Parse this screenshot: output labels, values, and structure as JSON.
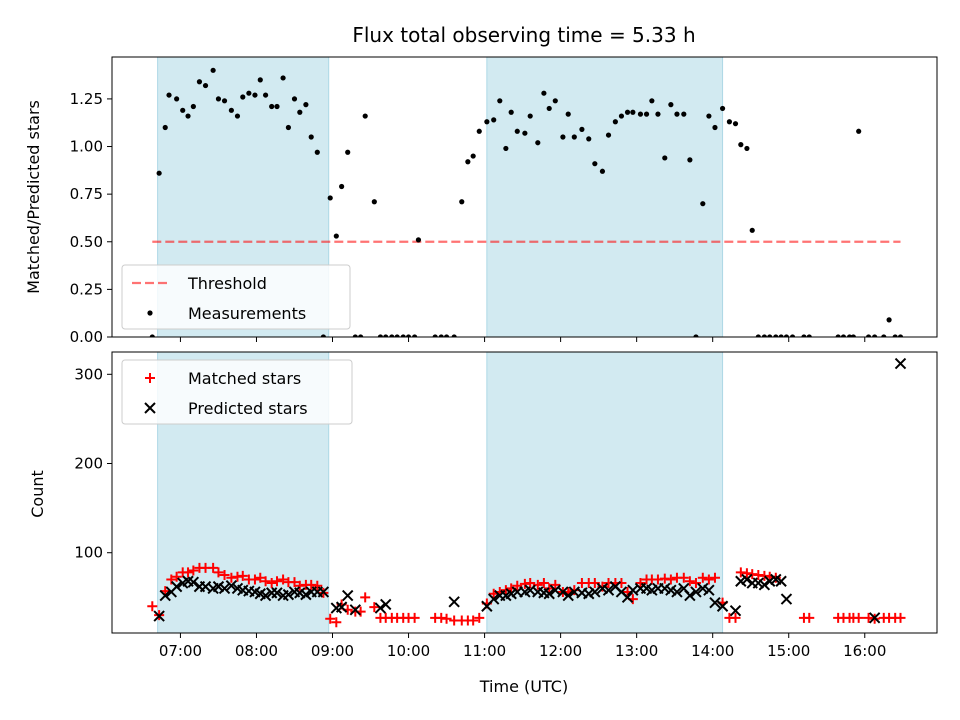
{
  "chart_data": {
    "type": "scatter",
    "title": "Flux total observing time = 5.33 h",
    "xlabel": "Time (UTC)",
    "x_ticks": [
      "07:00",
      "08:00",
      "09:00",
      "10:00",
      "11:00",
      "12:00",
      "13:00",
      "14:00",
      "15:00",
      "16:00"
    ],
    "x_tick_hours": [
      7,
      8,
      9,
      10,
      11,
      12,
      13,
      14,
      15,
      16
    ],
    "xlim": [
      6.1,
      16.95
    ],
    "highlight_spans": [
      [
        6.7,
        8.95
      ],
      [
        11.03,
        14.13
      ]
    ],
    "colors": {
      "span": "#add8e6",
      "threshold": "#ff0000",
      "matched": "#ff0000",
      "predicted": "#000000",
      "measurement": "#000000"
    },
    "panels": [
      {
        "ylabel": "Matched/Predicted stars",
        "ylim": [
          0,
          1.47
        ],
        "y_ticks": [
          "0.00",
          "0.25",
          "0.50",
          "0.75",
          "1.00",
          "1.25"
        ],
        "y_tick_values": [
          0,
          0.25,
          0.5,
          0.75,
          1.0,
          1.25
        ],
        "legend": {
          "location": "lower-left",
          "entries": [
            "Threshold",
            "Measurements"
          ]
        },
        "series": [
          {
            "name": "Threshold",
            "kind": "dashed-line",
            "x": [
              6.63,
              16.47
            ],
            "y": [
              0.5,
              0.5
            ]
          },
          {
            "name": "Measurements",
            "kind": "dots",
            "x": [
              6.63,
              6.72,
              6.8,
              6.85,
              6.95,
              7.03,
              7.1,
              7.17,
              7.25,
              7.33,
              7.43,
              7.5,
              7.58,
              7.67,
              7.75,
              7.82,
              7.9,
              7.98,
              8.05,
              8.12,
              8.2,
              8.27,
              8.35,
              8.42,
              8.5,
              8.57,
              8.65,
              8.72,
              8.8,
              8.88,
              8.97,
              9.05,
              9.12,
              9.2,
              9.3,
              9.37,
              9.43,
              9.55,
              9.63,
              9.7,
              9.78,
              9.85,
              9.93,
              10.0,
              10.08,
              10.13,
              10.35,
              10.43,
              10.5,
              10.6,
              10.7,
              10.78,
              10.85,
              10.93,
              11.03,
              11.12,
              11.2,
              11.28,
              11.35,
              11.43,
              11.53,
              11.6,
              11.7,
              11.78,
              11.85,
              11.93,
              12.03,
              12.1,
              12.18,
              12.28,
              12.37,
              12.45,
              12.55,
              12.63,
              12.72,
              12.8,
              12.88,
              12.95,
              13.05,
              13.13,
              13.2,
              13.28,
              13.37,
              13.45,
              13.53,
              13.62,
              13.7,
              13.78,
              13.87,
              13.95,
              14.03,
              14.13,
              14.22,
              14.3,
              14.37,
              14.45,
              14.52,
              14.6,
              14.68,
              14.75,
              14.83,
              14.9,
              14.97,
              15.05,
              15.2,
              15.27,
              15.65,
              15.72,
              15.8,
              15.85,
              15.92,
              16.05,
              16.13,
              16.25,
              16.32,
              16.4,
              16.47
            ],
            "y": [
              0.0,
              0.86,
              1.1,
              1.27,
              1.25,
              1.19,
              1.16,
              1.21,
              1.34,
              1.32,
              1.4,
              1.25,
              1.24,
              1.19,
              1.16,
              1.26,
              1.28,
              1.27,
              1.35,
              1.27,
              1.21,
              1.21,
              1.36,
              1.1,
              1.25,
              1.18,
              1.22,
              1.05,
              0.97,
              0.0,
              0.73,
              0.53,
              0.79,
              0.97,
              0.0,
              0.0,
              1.16,
              0.71,
              0.0,
              0.0,
              0.0,
              0.0,
              0.0,
              0.0,
              0.0,
              0.51,
              0.0,
              0.0,
              0.0,
              0.0,
              0.71,
              0.92,
              0.95,
              1.08,
              1.13,
              1.14,
              1.24,
              0.99,
              1.18,
              1.08,
              1.07,
              1.16,
              1.02,
              1.28,
              1.2,
              1.24,
              1.05,
              1.17,
              1.05,
              1.09,
              1.04,
              0.91,
              0.87,
              1.06,
              1.13,
              1.16,
              1.18,
              1.18,
              1.17,
              1.17,
              1.24,
              1.17,
              0.94,
              1.22,
              1.17,
              1.17,
              0.93,
              0.0,
              0.7,
              1.16,
              1.1,
              1.2,
              1.13,
              1.12,
              1.01,
              0.99,
              0.56,
              0.0,
              0.0,
              0.0,
              0.0,
              0.0,
              0.0,
              0.0,
              0.0,
              0.0,
              0.0,
              0.0,
              0.0,
              0.0,
              1.08,
              0.0,
              0.0,
              0.0,
              0.09,
              0.0,
              0.0
            ]
          }
        ]
      },
      {
        "ylabel": "Count",
        "ylim": [
          10,
          325
        ],
        "y_ticks": [
          "100",
          "200",
          "300"
        ],
        "y_tick_values": [
          100,
          200,
          300
        ],
        "legend": {
          "location": "upper-left",
          "entries": [
            "Matched stars",
            "Predicted stars"
          ]
        },
        "series": [
          {
            "name": "Matched stars",
            "kind": "plus",
            "x": [
              6.63,
              6.72,
              6.8,
              6.88,
              6.95,
              7.03,
              7.1,
              7.17,
              7.25,
              7.33,
              7.43,
              7.5,
              7.58,
              7.67,
              7.75,
              7.82,
              7.9,
              7.98,
              8.05,
              8.12,
              8.2,
              8.27,
              8.35,
              8.42,
              8.5,
              8.57,
              8.65,
              8.72,
              8.8,
              8.88,
              8.97,
              9.05,
              9.12,
              9.2,
              9.3,
              9.37,
              9.43,
              9.55,
              9.63,
              9.7,
              9.78,
              9.85,
              9.93,
              10.0,
              10.08,
              10.35,
              10.43,
              10.5,
              10.6,
              10.7,
              10.78,
              10.85,
              10.93,
              11.03,
              11.12,
              11.2,
              11.28,
              11.35,
              11.43,
              11.53,
              11.6,
              11.7,
              11.78,
              11.85,
              11.93,
              12.03,
              12.1,
              12.18,
              12.28,
              12.37,
              12.45,
              12.55,
              12.63,
              12.72,
              12.8,
              12.88,
              12.95,
              13.05,
              13.13,
              13.2,
              13.28,
              13.37,
              13.45,
              13.53,
              13.62,
              13.7,
              13.78,
              13.87,
              13.95,
              14.03,
              14.13,
              14.22,
              14.3,
              14.37,
              14.45,
              14.52,
              14.6,
              14.68,
              14.75,
              14.83,
              15.2,
              15.27,
              15.65,
              15.72,
              15.8,
              15.85,
              15.92,
              16.05,
              16.13,
              16.25,
              16.32,
              16.4,
              16.47
            ],
            "y": [
              40,
              30,
              57,
              70,
              73,
              78,
              78,
              80,
              83,
              83,
              83,
              78,
              75,
              72,
              73,
              74,
              70,
              70,
              72,
              68,
              66,
              68,
              70,
              67,
              67,
              63,
              64,
              64,
              63,
              55,
              26,
              22,
              42,
              36,
              34,
              34,
              50,
              39,
              27,
              27,
              27,
              27,
              27,
              27,
              27,
              27,
              27,
              26,
              24,
              24,
              24,
              24,
              27,
              43,
              54,
              56,
              58,
              60,
              63,
              65,
              66,
              64,
              66,
              60,
              64,
              56,
              56,
              58,
              66,
              66,
              66,
              62,
              66,
              66,
              66,
              56,
              48,
              66,
              70,
              70,
              70,
              71,
              70,
              72,
              72,
              68,
              66,
              72,
              70,
              72,
              44,
              27,
              27,
              78,
              77,
              76,
              75,
              74,
              73,
              72,
              27,
              27,
              27,
              27,
              27,
              27,
              27,
              27,
              26,
              27,
              27,
              27,
              27
            ]
          },
          {
            "name": "Predicted stars",
            "kind": "x",
            "x": [
              6.72,
              6.8,
              6.88,
              6.95,
              7.03,
              7.1,
              7.17,
              7.25,
              7.33,
              7.43,
              7.5,
              7.58,
              7.67,
              7.75,
              7.82,
              7.9,
              7.98,
              8.05,
              8.12,
              8.2,
              8.27,
              8.35,
              8.42,
              8.5,
              8.57,
              8.65,
              8.72,
              8.8,
              8.88,
              9.05,
              9.12,
              9.2,
              9.3,
              9.63,
              9.7,
              10.6,
              11.03,
              11.12,
              11.2,
              11.28,
              11.35,
              11.43,
              11.53,
              11.6,
              11.7,
              11.78,
              11.85,
              11.93,
              12.03,
              12.1,
              12.18,
              12.28,
              12.37,
              12.45,
              12.55,
              12.63,
              12.72,
              12.8,
              12.88,
              12.95,
              13.05,
              13.13,
              13.2,
              13.28,
              13.37,
              13.45,
              13.53,
              13.62,
              13.7,
              13.78,
              13.87,
              13.95,
              14.03,
              14.13,
              14.3,
              14.37,
              14.45,
              14.52,
              14.6,
              14.68,
              14.75,
              14.83,
              14.9,
              14.97,
              16.13,
              16.47
            ],
            "y": [
              29,
              52,
              56,
              62,
              66,
              68,
              67,
              62,
              62,
              60,
              62,
              60,
              63,
              60,
              58,
              57,
              56,
              54,
              52,
              55,
              55,
              52,
              53,
              56,
              55,
              53,
              56,
              56,
              56,
              38,
              39,
              52,
              36,
              38,
              42,
              45,
              40,
              48,
              52,
              52,
              54,
              56,
              56,
              58,
              56,
              55,
              54,
              58,
              56,
              52,
              56,
              55,
              54,
              56,
              60,
              58,
              62,
              56,
              50,
              58,
              60,
              60,
              58,
              60,
              60,
              58,
              56,
              60,
              52,
              56,
              60,
              58,
              44,
              40,
              35,
              68,
              70,
              66,
              66,
              64,
              68,
              70,
              68,
              48,
              27,
              312
            ]
          }
        ]
      }
    ]
  }
}
